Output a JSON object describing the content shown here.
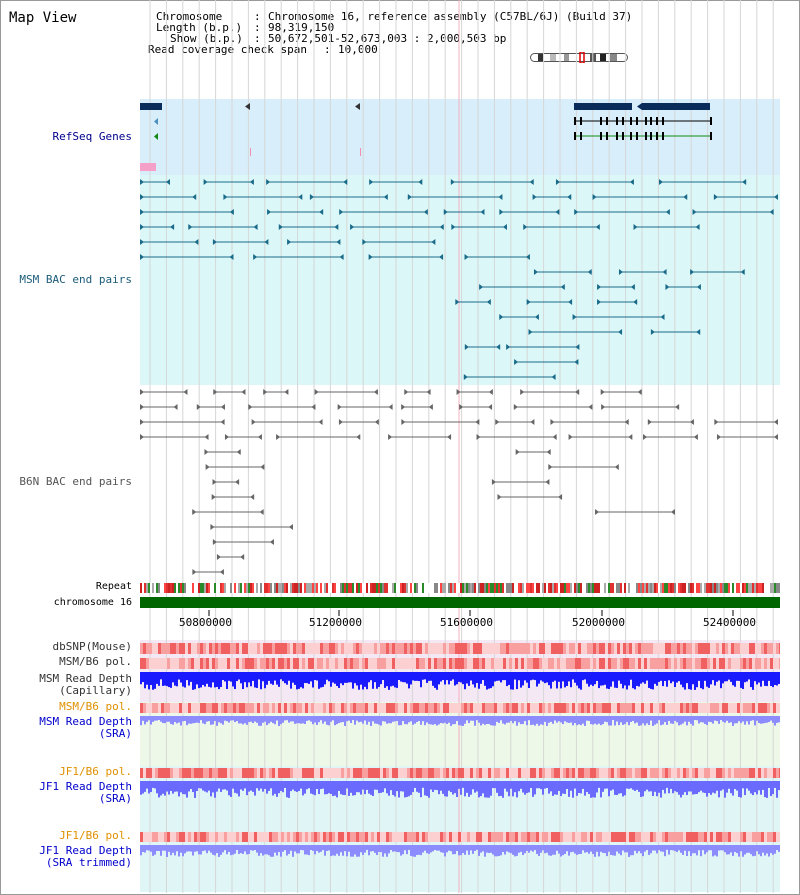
{
  "view": {
    "title": "Map View"
  },
  "info": {
    "chromosome_key": "Chromosome",
    "chromosome_value": "Chromosome 16, reference assembly (C57BL/6J) (Build 37)",
    "length_key": "Length (b.p.)",
    "length_value": "98,319,150",
    "show_key": "Show (b.p.)",
    "show_value": "50,672,501-52,673,003 : 2,000,503 bp",
    "coverage_key": "Read coverage check span",
    "coverage_value": "10,000"
  },
  "tracks": {
    "refseq": "RefSeq Genes",
    "msm_bac": "MSM BAC end pairs",
    "b6n_bac": "B6N BAC end pairs",
    "repeat": "Repeat",
    "chromosome": "chromosome 16",
    "dbsnp": "dbSNP(Mouse)",
    "msm_b6_pol": "MSM/B6 pol.",
    "msm_depth_cap_1": "MSM Read Depth",
    "msm_depth_cap_2": "(Capillary)",
    "msm_b6_pol2": "MSM/B6 pol.",
    "msm_depth_sra_1": "MSM Read Depth",
    "msm_depth_sra_2": "(SRA)",
    "jf1_b6_pol": "JF1/B6 pol.",
    "jf1_depth_sra_1": "JF1 Read Depth",
    "jf1_depth_sra_2": "(SRA)",
    "jf1_b6_pol2": "JF1/B6 pol.",
    "jf1_depth_trim_1": "JF1 Read Depth",
    "jf1_depth_trim_2": "(SRA trimmed)"
  },
  "axis": {
    "ticks": [
      "50800000",
      "51200000",
      "51600000",
      "52000000",
      "52400000"
    ]
  },
  "colors": {
    "refseq_bg": "#d8eefa",
    "msm_bg": "#dcf7f7",
    "light_bg": "#e8f8f0",
    "gene": "#0a2c5a",
    "msm_pair": "#1a6b8a",
    "b6n_pair": "#666666",
    "chrom": "#006600",
    "depth_blue": "#1a1aff",
    "depth_light": "#8c8cff",
    "pol_red": "#e03030"
  }
}
